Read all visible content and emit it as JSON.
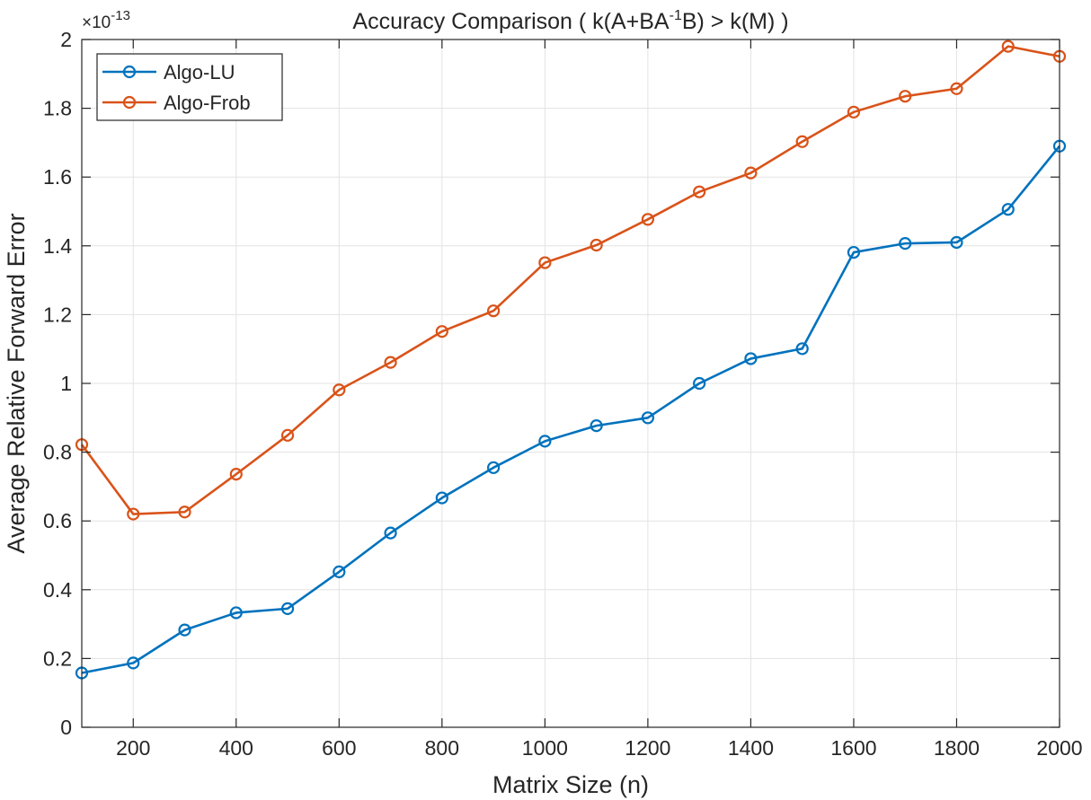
{
  "chart_data": {
    "type": "line",
    "title_text": "Accuracy  Comparison  (  k(A+BA",
    "title_sup": "-1",
    "title_tail": "B)  >  k(M)  )",
    "xlabel": "Matrix Size (n)",
    "ylabel": "Average Relative Forward Error",
    "y_exponent_prefix": "×10",
    "y_exponent_power": "-13",
    "xlim": [
      100,
      2000
    ],
    "ylim": [
      0,
      2
    ],
    "x_ticks": [
      200,
      400,
      600,
      800,
      1000,
      1200,
      1400,
      1600,
      1800,
      2000
    ],
    "y_ticks": [
      0,
      0.2,
      0.4,
      0.6,
      0.8,
      1,
      1.2,
      1.4,
      1.6,
      1.8,
      2
    ],
    "x_tick_labels": [
      "200",
      "400",
      "600",
      "800",
      "1000",
      "1200",
      "1400",
      "1600",
      "1800",
      "2000"
    ],
    "y_tick_labels": [
      "0",
      "0.2",
      "0.4",
      "0.6",
      "0.8",
      "1",
      "1.2",
      "1.4",
      "1.6",
      "1.8",
      "2"
    ],
    "grid": true,
    "legend_position": "top-left",
    "x": [
      100,
      200,
      300,
      400,
      500,
      600,
      700,
      800,
      900,
      1000,
      1100,
      1200,
      1300,
      1400,
      1500,
      1600,
      1700,
      1800,
      1900,
      2000
    ],
    "series": [
      {
        "name": "Algo-LU",
        "color": "#0072BD",
        "marker": "circle",
        "values": [
          0.158,
          0.187,
          0.283,
          0.333,
          0.345,
          0.452,
          0.565,
          0.667,
          0.755,
          0.832,
          0.877,
          0.9,
          1.0,
          1.072,
          1.101,
          1.381,
          1.407,
          1.41,
          1.506,
          1.69
        ]
      },
      {
        "name": "Algo-Frob",
        "color": "#D95319",
        "marker": "circle",
        "values": [
          0.822,
          0.62,
          0.626,
          0.736,
          0.849,
          0.981,
          1.061,
          1.151,
          1.211,
          1.351,
          1.402,
          1.477,
          1.557,
          1.612,
          1.703,
          1.789,
          1.835,
          1.857,
          1.98,
          1.951
        ]
      }
    ]
  }
}
